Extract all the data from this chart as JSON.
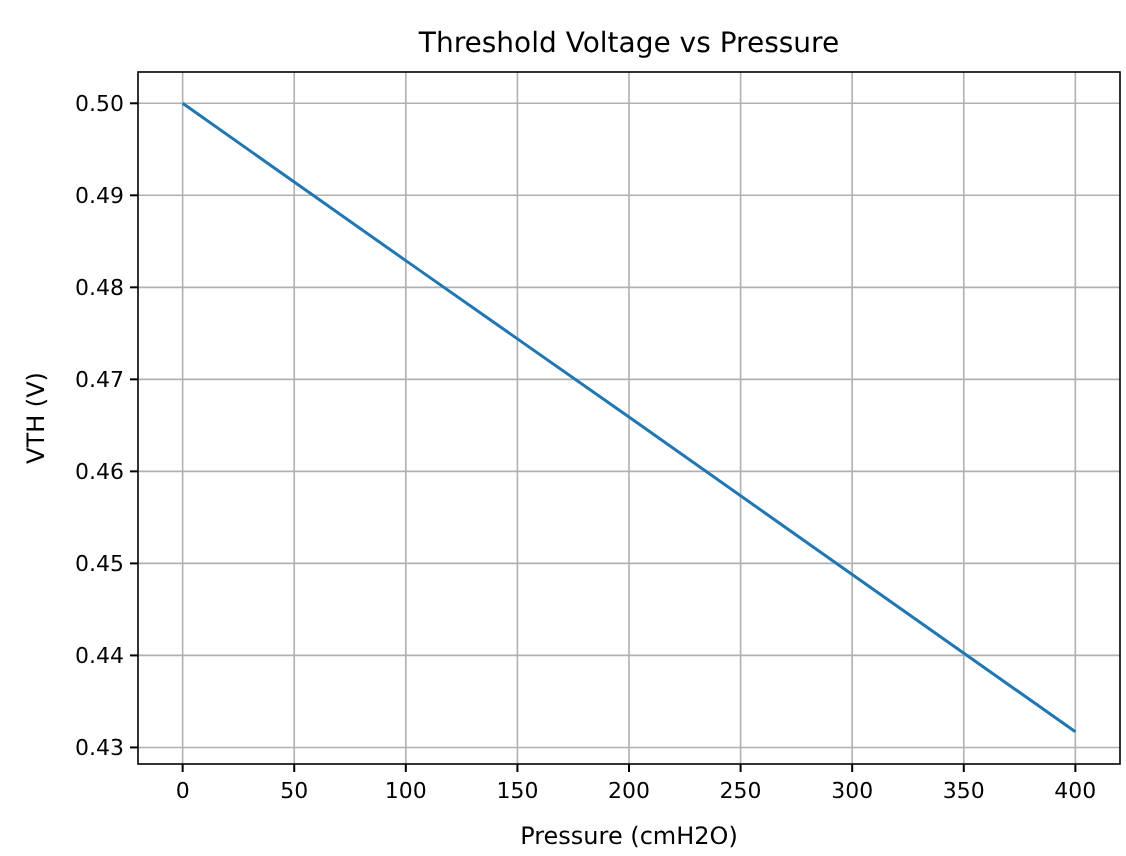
{
  "chart_data": {
    "type": "line",
    "title": "Threshold Voltage vs Pressure",
    "xlabel": "Pressure (cmH2O)",
    "ylabel": "VTH (V)",
    "x": [
      0,
      100,
      200,
      300,
      400
    ],
    "series": [
      {
        "color": "#1f77b4",
        "values": [
          0.5,
          0.4829,
          0.4659,
          0.4488,
          0.4317
        ]
      }
    ],
    "xlim": [
      -20,
      420
    ],
    "xticks": [
      0,
      50,
      100,
      150,
      200,
      250,
      300,
      350,
      400
    ],
    "ylim": [
      0.4282,
      0.5034
    ],
    "yticks": [
      {
        "value": 0.43,
        "label": "0.43"
      },
      {
        "value": 0.44,
        "label": "0.44"
      },
      {
        "value": 0.45,
        "label": "0.45"
      },
      {
        "value": 0.46,
        "label": "0.46"
      },
      {
        "value": 0.47,
        "label": "0.47"
      },
      {
        "value": 0.48,
        "label": "0.48"
      },
      {
        "value": 0.49,
        "label": "0.49"
      },
      {
        "value": 0.5,
        "label": "0.50"
      }
    ],
    "grid": true,
    "line_style": "solid",
    "marker": "none"
  }
}
